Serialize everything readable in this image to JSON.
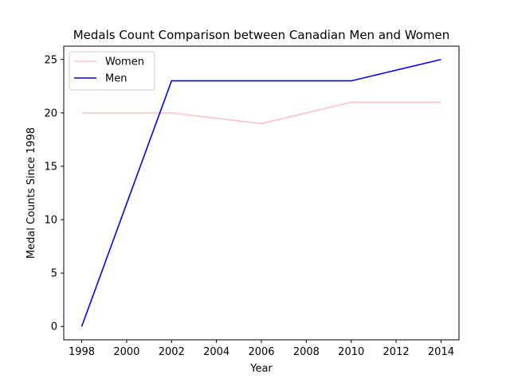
{
  "chart_data": {
    "type": "line",
    "title": "Medals Count Comparison between Canadian Men and Women",
    "xlabel": "Year",
    "ylabel": "Medal Counts Since 1998",
    "x": [
      1998,
      2002,
      2006,
      2010,
      2014
    ],
    "series": [
      {
        "name": "Women",
        "values": [
          20,
          20,
          19,
          21,
          21
        ],
        "color": "#ffc0cb"
      },
      {
        "name": "Men",
        "values": [
          0,
          23,
          23,
          23,
          25
        ],
        "color": "#0000ff"
      }
    ],
    "xlim": [
      1997.2,
      2014.8
    ],
    "ylim": [
      -1.25,
      26.25
    ],
    "xticks": [
      1998,
      2000,
      2002,
      2004,
      2006,
      2008,
      2010,
      2012,
      2014
    ],
    "yticks": [
      0,
      5,
      10,
      15,
      20,
      25
    ],
    "grid": false,
    "legend_position": "top-left"
  }
}
